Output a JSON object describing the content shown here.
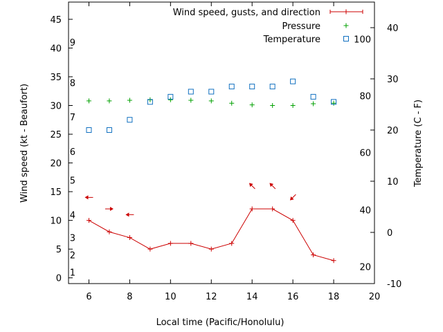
{
  "chart_data": {
    "type": "line",
    "xlabel": "Local time (Pacific/Honolulu)",
    "ylabel": "Wind speed (kt - Beaufort)",
    "y2label": "Temperature (C - F)",
    "xlim": [
      5,
      20
    ],
    "ylim": [
      -1,
      48
    ],
    "y2lim": [
      -10,
      45
    ],
    "x_ticks": [
      6,
      8,
      10,
      12,
      14,
      16,
      18,
      20
    ],
    "y_ticks": [
      0,
      5,
      10,
      15,
      20,
      25,
      30,
      35,
      40,
      45
    ],
    "y2_ticks": [
      -10,
      0,
      10,
      20,
      30,
      40
    ],
    "beaufort_labels": [
      {
        "label": "1",
        "kt": 1
      },
      {
        "label": "2",
        "kt": 4
      },
      {
        "label": "3",
        "kt": 7
      },
      {
        "label": "4",
        "kt": 11
      },
      {
        "label": "5",
        "kt": 17
      },
      {
        "label": "6",
        "kt": 22
      },
      {
        "label": "7",
        "kt": 28
      },
      {
        "label": "8",
        "kt": 34
      },
      {
        "label": "9",
        "kt": 41
      }
    ],
    "fahrenheit_labels": [
      {
        "label": "20",
        "celsius": -6.7
      },
      {
        "label": "40",
        "celsius": 4.4
      },
      {
        "label": "60",
        "celsius": 15.6
      },
      {
        "label": "80",
        "celsius": 26.7
      },
      {
        "label": "100",
        "celsius": 37.8
      }
    ],
    "legend_position": "top-right",
    "series": [
      {
        "name": "Wind speed, gusts, and direction",
        "axis": "left",
        "color": "#cc0000",
        "marker": "plus",
        "x": [
          6,
          7,
          8,
          9,
          10,
          11,
          12,
          13,
          14,
          15,
          16,
          17,
          18
        ],
        "y": [
          10,
          8,
          7,
          5,
          6,
          6,
          5,
          6,
          12,
          12,
          10,
          4,
          3
        ]
      },
      {
        "name": "Pressure",
        "axis": "left",
        "color": "#00a000",
        "marker": "plus",
        "x": [
          6,
          7,
          8,
          9,
          10,
          11,
          12,
          13,
          14,
          15,
          16,
          17,
          18
        ],
        "y": [
          30.8,
          30.8,
          30.9,
          31.0,
          31.0,
          30.9,
          30.8,
          30.4,
          30.1,
          30.0,
          30.0,
          30.3,
          30.4
        ]
      },
      {
        "name": "Temperature",
        "axis": "right",
        "color": "#1070c0",
        "marker": "square",
        "x": [
          6,
          7,
          8,
          9,
          10,
          11,
          12,
          13,
          14,
          15,
          16,
          17,
          18
        ],
        "y": [
          20,
          20,
          22,
          25.5,
          26.5,
          27.5,
          27.5,
          28.5,
          28.5,
          28.5,
          29.5,
          26.5,
          25.5
        ]
      }
    ],
    "wind_arrows": [
      {
        "x": 6,
        "kt": 14,
        "direction": "from right"
      },
      {
        "x": 7,
        "kt": 12,
        "direction": "from left"
      },
      {
        "x": 8,
        "kt": 11,
        "direction": "from right"
      },
      {
        "x": 14,
        "kt": 16,
        "direction": "from upper right"
      },
      {
        "x": 15,
        "kt": 16,
        "direction": "from upper right"
      },
      {
        "x": 16,
        "kt": 14,
        "direction": "from lower right"
      }
    ]
  }
}
